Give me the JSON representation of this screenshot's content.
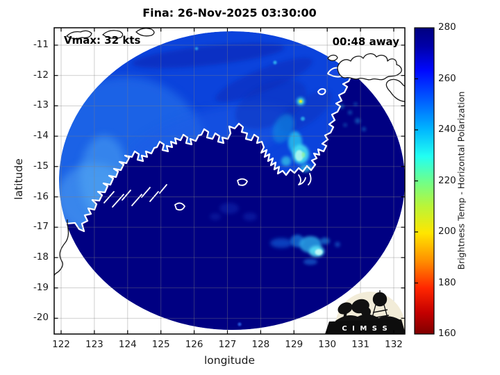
{
  "title": "Fina: 26-Nov-2025 03:30:00",
  "annotations": {
    "vmax": "Vmax: 32 kts",
    "eta": "00:48 away"
  },
  "axes": {
    "xlabel": "longitude",
    "ylabel": "latitude",
    "x_tick_labels": [
      "122",
      "123",
      "124",
      "125",
      "126",
      "127",
      "128",
      "129",
      "130",
      "131",
      "132"
    ],
    "y_tick_labels": [
      "-11",
      "-12",
      "-13",
      "-14",
      "-15",
      "-16",
      "-17",
      "-18",
      "-19",
      "-20"
    ]
  },
  "colorbar": {
    "label": "Brightness Temp - Horizontal Polarization",
    "tick_labels": [
      "280",
      "260",
      "240",
      "220",
      "200",
      "180",
      "160"
    ]
  },
  "logo": {
    "text": "C I M S S"
  },
  "colors": {
    "background": "#ffffff",
    "swath_ocean_blue": "#0b43dc",
    "swath_land_navy": "#000082",
    "convection_cyan": "#57dff4",
    "convection_core_yellow": "#e8e52e",
    "coastline_white": "#ffffff",
    "outside_coastline_black": "#161616",
    "grid_gray": "#808080",
    "logo_cream": "#f2ecd8",
    "text_black": "#000000"
  },
  "chart_data": {
    "type": "heatmap",
    "title": "Fina: 26-Nov-2025 03:30:00",
    "storm_name": "Fina",
    "valid_time": "26-Nov-2025 03:30:00",
    "vmax_kts": 32,
    "time_offset_label": "00:48 away",
    "xlabel": "longitude",
    "ylabel": "latitude",
    "xlim": [
      121.8,
      132.3
    ],
    "ylim": [
      -20.6,
      -10.4
    ],
    "x_ticks": [
      122,
      123,
      124,
      125,
      126,
      127,
      128,
      129,
      130,
      131,
      132
    ],
    "y_ticks": [
      -11,
      -12,
      -13,
      -14,
      -15,
      -16,
      -17,
      -18,
      -19,
      -20
    ],
    "grid": true,
    "colorbar": {
      "label": "Brightness Temp - Horizontal Polarization",
      "units": "K",
      "range": [
        160,
        280
      ],
      "ticks": [
        160,
        180,
        200,
        220,
        240,
        260,
        280
      ],
      "colormap": "jet (280 K = dark blue at top, 160 K = dark red at bottom)",
      "position": "right"
    },
    "swath": {
      "shape": "circular microwave imager swath",
      "center_lon": 127.1,
      "center_lat": -15.5,
      "radius_deg": 5.0
    },
    "regions": [
      {
        "name": "ocean northwest of coastline",
        "appearance": "medium blue",
        "approx_temp_K": 260
      },
      {
        "name": "land / southeast sector (Kimberley, NW Australia)",
        "appearance": "uniform dark navy",
        "approx_temp_K": 279
      },
      {
        "name": "coastline over swath",
        "appearance": "white contour"
      },
      {
        "name": "coastline outside swath (Timor & islets)",
        "appearance": "thin black contour"
      }
    ],
    "features": [
      {
        "name": "deep convection cluster",
        "lon": 129.1,
        "lat": -14.4,
        "approx_min_temp_K": 228
      },
      {
        "name": "isolated strong convective cell",
        "lon": 129.2,
        "lat": -12.85,
        "approx_min_temp_K": 206
      },
      {
        "name": "small convective dot",
        "lon": 129.25,
        "lat": -13.45,
        "approx_min_temp_K": 245
      },
      {
        "name": "convective band southeast",
        "lon": 129.65,
        "lat": -17.75,
        "approx_min_temp_K": 233
      },
      {
        "name": "dark mottled band along north rim",
        "lon": 126.3,
        "lat": -11.4,
        "approx_temp_K": 270
      },
      {
        "name": "scattered light showers over Timor Sea",
        "lon": 130.5,
        "lat": -13.3,
        "approx_temp_K": 252
      }
    ]
  }
}
